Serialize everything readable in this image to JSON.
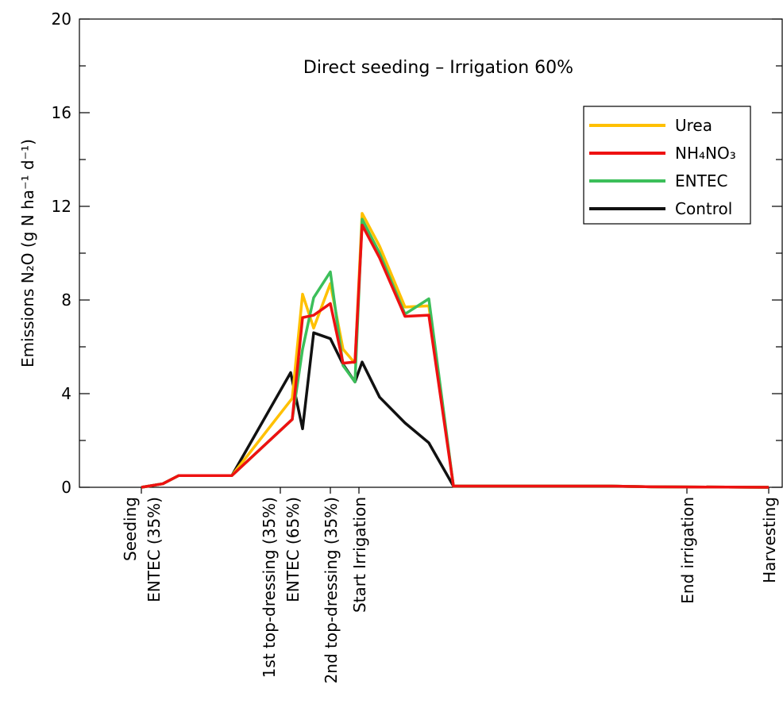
{
  "chart_data": {
    "type": "line",
    "title": "Direct seeding – Irrigation 60%",
    "ylabel": "Emissions N₂O (g N ha⁻¹ d⁻¹)",
    "xlim": [
      0,
      885
    ],
    "ylim": [
      0,
      20
    ],
    "yticks": [
      0,
      4,
      8,
      12,
      16,
      20
    ],
    "legend": "upper right",
    "series": [
      {
        "name": "Control",
        "color": "#111111",
        "x": [
          78,
          105,
          125,
          192,
          266,
          281,
          295,
          316,
          332,
          347,
          356,
          378,
          410,
          440,
          471,
          670,
          720,
          868
        ],
        "values": [
          0,
          0.15,
          0.5,
          0.5,
          4.9,
          2.5,
          6.6,
          6.35,
          5.25,
          4.5,
          5.35,
          3.85,
          2.75,
          1.9,
          0.05,
          0.05,
          0.02,
          0
        ]
      },
      {
        "name": "Urea",
        "color": "#ffc000",
        "x": [
          78,
          105,
          125,
          192,
          268,
          281,
          295,
          316,
          332,
          347,
          356,
          378,
          410,
          440,
          471,
          670,
          720,
          868
        ],
        "values": [
          0,
          0.15,
          0.5,
          0.5,
          3.8,
          8.25,
          6.8,
          8.7,
          5.9,
          5.3,
          11.7,
          10.3,
          7.7,
          7.75,
          0.05,
          0.05,
          0.02,
          0
        ]
      },
      {
        "name": "ENTEC",
        "color": "#3cbf5a",
        "x": [
          78,
          105,
          125,
          192,
          268,
          281,
          295,
          316,
          332,
          347,
          356,
          378,
          410,
          440,
          471,
          670,
          720,
          868
        ],
        "values": [
          0,
          0.15,
          0.5,
          0.5,
          2.9,
          5.9,
          8.1,
          9.2,
          5.2,
          4.5,
          11.45,
          10.0,
          7.4,
          8.05,
          0.05,
          0.05,
          0.02,
          0
        ]
      },
      {
        "name": "NH₄NO₃",
        "color": "#ee1111",
        "x": [
          78,
          105,
          125,
          192,
          268,
          281,
          295,
          316,
          332,
          347,
          356,
          378,
          410,
          440,
          471,
          670,
          720,
          868
        ],
        "values": [
          0,
          0.15,
          0.5,
          0.5,
          2.9,
          7.25,
          7.35,
          7.85,
          5.3,
          5.35,
          11.2,
          9.8,
          7.3,
          7.35,
          0.05,
          0.05,
          0.02,
          0
        ]
      }
    ],
    "legend_order": [
      1,
      3,
      2,
      0
    ],
    "events": [
      {
        "x": 78,
        "labels": [
          "Seeding",
          "ENTEC (35%)"
        ]
      },
      {
        "x": 253,
        "labels": [
          "1st top-dressing (35%)",
          "ENTEC (65%)"
        ]
      },
      {
        "x": 316,
        "labels": [
          "2nd top-dressing (35%)"
        ]
      },
      {
        "x": 352,
        "labels": [
          "Start Irrigation"
        ]
      },
      {
        "x": 765,
        "labels": [
          "End irrigation"
        ]
      },
      {
        "x": 868,
        "labels": [
          "Harvesting"
        ]
      }
    ]
  }
}
